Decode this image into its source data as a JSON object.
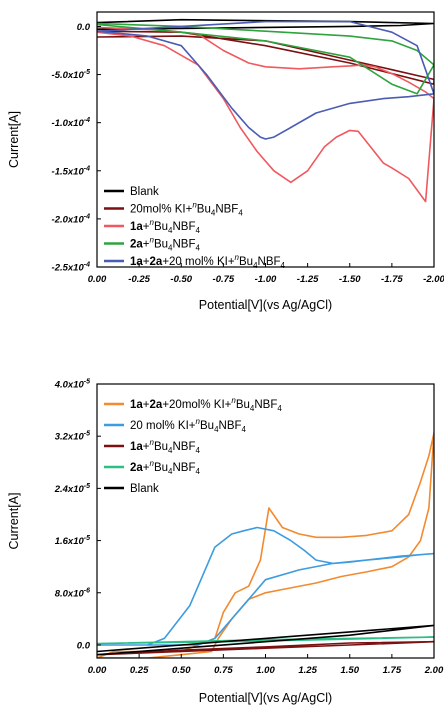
{
  "chart_data": [
    {
      "type": "line",
      "xlabel": "Potential[V](vs Ag/AgCl)",
      "ylabel": "Current[A]",
      "xlim": [
        0.0,
        -2.0
      ],
      "ylim": [
        -0.00025,
        1.5e-05
      ],
      "x_ticks": [
        0.0,
        -0.25,
        -0.5,
        -0.75,
        -1.0,
        -1.25,
        -1.5,
        -1.75,
        -2.0
      ],
      "x_tick_labels": [
        "0.00",
        "-0.25",
        "-0.50",
        "-0.75",
        "-1.00",
        "-1.25",
        "-1.50",
        "-1.75",
        "-2.00"
      ],
      "y_ticks": [
        0.0,
        -5e-05,
        -0.0001,
        -0.00015,
        -0.0002,
        -0.00025
      ],
      "y_tick_labels": [
        "0.0",
        "-5.0x10-5",
        "-1.0x10-4",
        "-1.5x10-4",
        "-2.0x10-4",
        "-2.5x10-4"
      ],
      "legend_position": "bottom-left",
      "legend": [
        {
          "id": "blank",
          "color": "#000000",
          "parts": [
            {
              "t": "Blank"
            }
          ]
        },
        {
          "id": "ki",
          "color": "#7a1010",
          "parts": [
            {
              "t": "20mol% KI+"
            },
            {
              "t": "n",
              "i": true,
              "sup": true
            },
            {
              "t": "Bu"
            },
            {
              "t": "4",
              "sub": true
            },
            {
              "t": "NBF"
            },
            {
              "t": "4",
              "sub": true
            }
          ]
        },
        {
          "id": "s1a",
          "color": "#f0595f",
          "parts": [
            {
              "t": "1a",
              "b": true
            },
            {
              "t": "+"
            },
            {
              "t": "n",
              "i": true,
              "sup": true
            },
            {
              "t": "Bu"
            },
            {
              "t": "4",
              "sub": true
            },
            {
              "t": "NBF"
            },
            {
              "t": "4",
              "sub": true
            }
          ]
        },
        {
          "id": "s2a",
          "color": "#2ea33e",
          "parts": [
            {
              "t": "2a",
              "b": true
            },
            {
              "t": "+"
            },
            {
              "t": "n",
              "i": true,
              "sup": true
            },
            {
              "t": "Bu"
            },
            {
              "t": "4",
              "sub": true
            },
            {
              "t": "NBF"
            },
            {
              "t": "4",
              "sub": true
            }
          ]
        },
        {
          "id": "mix",
          "color": "#4a5cb3",
          "parts": [
            {
              "t": "1a",
              "b": true
            },
            {
              "t": "+"
            },
            {
              "t": "2a",
              "b": true
            },
            {
              "t": "+20 mol% KI+"
            },
            {
              "t": "n",
              "i": true,
              "sup": true
            },
            {
              "t": "Bu"
            },
            {
              "t": "4",
              "sub": true
            },
            {
              "t": "NBF"
            },
            {
              "t": "4",
              "sub": true
            }
          ]
        }
      ],
      "series": [
        {
          "id": "blank",
          "color": "#000000",
          "x": [
            0.0,
            -0.5,
            -1.0,
            -1.5,
            -1.8,
            -2.0,
            -1.5,
            -1.0,
            -0.5,
            0.0
          ],
          "y": [
            -3e-06,
            -2e-06,
            -1e-06,
            0.0,
            1e-06,
            3e-06,
            5e-06,
            6e-06,
            7e-06,
            4e-06
          ]
        },
        {
          "id": "ki",
          "color": "#7a1010",
          "x": [
            0.0,
            -0.5,
            -1.0,
            -1.5,
            -1.75,
            -2.0,
            -2.0,
            -1.5,
            -1.0,
            -0.5,
            0.0
          ],
          "y": [
            -1.1e-05,
            -1e-05,
            -1.5e-05,
            -3.5e-05,
            -4.5e-05,
            -5.5e-05,
            -6e-05,
            -3.8e-05,
            -2e-05,
            -6e-06,
            -5e-06
          ]
        },
        {
          "id": "s1a",
          "color": "#f0595f",
          "x": [
            0.0,
            -0.4,
            -0.6,
            -0.75,
            -0.9,
            -1.0,
            -1.1,
            -1.2,
            -1.3,
            -1.4,
            -1.5,
            -1.58,
            -1.65,
            -1.75,
            -1.85,
            -1.95,
            -2.0,
            -1.95,
            -1.85,
            -1.75,
            -1.7,
            -1.6,
            -1.55,
            -1.5,
            -1.42,
            -1.35,
            -1.25,
            -1.15,
            -1.05,
            -0.95,
            -0.85,
            -0.75,
            -0.6,
            -0.4,
            -0.2,
            0.0
          ],
          "y": [
            -1e-06,
            -4e-06,
            -8e-06,
            -2.5e-05,
            -3.8e-05,
            -4.2e-05,
            -4.3e-05,
            -4.4e-05,
            -4.3e-05,
            -4.2e-05,
            -4.1e-05,
            -4e-05,
            -4.2e-05,
            -4.9e-05,
            -5.8e-05,
            -6.8e-05,
            -7.5e-05,
            -0.000182,
            -0.000158,
            -0.000147,
            -0.000142,
            -0.00012,
            -0.000109,
            -0.000108,
            -0.000115,
            -0.000125,
            -0.00015,
            -0.000162,
            -0.00015,
            -0.00013,
            -0.000105,
            -7.5e-05,
            -4e-05,
            -2e-05,
            -1e-05,
            -6e-06
          ]
        },
        {
          "id": "s2a",
          "color": "#2ea33e",
          "x": [
            0.0,
            -0.5,
            -1.0,
            -1.5,
            -1.75,
            -1.9,
            -2.0,
            -1.9,
            -1.75,
            -1.5,
            -1.0,
            -0.5,
            0.0
          ],
          "y": [
            3e-06,
            0.0,
            -5e-06,
            -1e-05,
            -1.5e-05,
            -2.5e-05,
            -4e-05,
            -7e-05,
            -6e-05,
            -3.2e-05,
            -1.5e-05,
            -6e-06,
            2e-06
          ]
        },
        {
          "id": "mix",
          "color": "#4a5cb3",
          "x": [
            0.0,
            -0.3,
            -0.5,
            -0.65,
            -0.8,
            -0.9,
            -0.97,
            -1.0,
            -1.05,
            -1.15,
            -1.3,
            -1.5,
            -1.7,
            -1.85,
            -2.0,
            -1.9,
            -1.75,
            -1.5,
            -1.0,
            -0.5,
            0.0
          ],
          "y": [
            -5e-06,
            -1e-05,
            -2e-05,
            -5e-05,
            -8.5e-05,
            -0.000105,
            -0.000115,
            -0.000117,
            -0.000115,
            -0.000105,
            -9e-05,
            -8e-05,
            -7.5e-05,
            -7.3e-05,
            -7e-05,
            -2e-05,
            -6e-06,
            5e-06,
            5e-06,
            0.0,
            -5e-06
          ]
        }
      ]
    },
    {
      "type": "line",
      "xlabel": "Potential[V](vs Ag/AgCl)",
      "ylabel": "Current[A]",
      "xlim": [
        0.0,
        2.0
      ],
      "ylim": [
        -2e-06,
        4e-05
      ],
      "x_ticks": [
        0.0,
        0.25,
        0.5,
        0.75,
        1.0,
        1.25,
        1.5,
        1.75,
        2.0
      ],
      "x_tick_labels": [
        "0.00",
        "0.25",
        "0.50",
        "0.75",
        "1.00",
        "1.25",
        "1.50",
        "1.75",
        "2.00"
      ],
      "y_ticks": [
        0.0,
        8e-06,
        1.6e-05,
        2.4e-05,
        3.2e-05,
        4e-05
      ],
      "y_tick_labels": [
        "0.0",
        "8.0x10-6",
        "1.6x10-5",
        "2.4x10-5",
        "3.2x10-5",
        "4.0x10-5"
      ],
      "legend_position": "top-left",
      "legend": [
        {
          "id": "mix",
          "color": "#f28a30",
          "parts": [
            {
              "t": "1a",
              "b": true
            },
            {
              "t": "+"
            },
            {
              "t": "2a",
              "b": true
            },
            {
              "t": "+20mol% KI+"
            },
            {
              "t": "n",
              "i": true,
              "sup": true
            },
            {
              "t": "Bu"
            },
            {
              "t": "4",
              "sub": true
            },
            {
              "t": "NBF"
            },
            {
              "t": "4",
              "sub": true
            }
          ]
        },
        {
          "id": "ki",
          "color": "#3d9be0",
          "parts": [
            {
              "t": "20 mol% KI+"
            },
            {
              "t": "n",
              "i": true,
              "sup": true
            },
            {
              "t": "Bu"
            },
            {
              "t": "4",
              "sub": true
            },
            {
              "t": "NBF"
            },
            {
              "t": "4",
              "sub": true
            }
          ]
        },
        {
          "id": "s1a",
          "color": "#7a1010",
          "parts": [
            {
              "t": "1a",
              "b": true
            },
            {
              "t": "+"
            },
            {
              "t": "n",
              "i": true,
              "sup": true
            },
            {
              "t": "Bu"
            },
            {
              "t": "4",
              "sub": true
            },
            {
              "t": "NBF"
            },
            {
              "t": "4",
              "sub": true
            }
          ]
        },
        {
          "id": "s2a",
          "color": "#2bbf86",
          "parts": [
            {
              "t": "2a",
              "b": true
            },
            {
              "t": "+"
            },
            {
              "t": "n",
              "i": true,
              "sup": true
            },
            {
              "t": "Bu"
            },
            {
              "t": "4",
              "sub": true
            },
            {
              "t": "NBF"
            },
            {
              "t": "4",
              "sub": true
            }
          ]
        },
        {
          "id": "blank",
          "color": "#000000",
          "parts": [
            {
              "t": "Blank"
            }
          ]
        }
      ],
      "series": [
        {
          "id": "mix",
          "color": "#f28a30",
          "x": [
            0.0,
            0.1,
            0.2,
            0.3,
            0.4,
            0.5,
            0.6,
            0.7,
            0.75,
            0.82,
            0.9,
            0.97,
            1.02,
            1.1,
            1.2,
            1.3,
            1.45,
            1.6,
            1.75,
            1.85,
            1.92,
            1.97,
            2.0,
            1.97,
            1.92,
            1.85,
            1.75,
            1.6,
            1.45,
            1.3,
            1.1,
            1.0,
            0.9,
            0.8,
            0.72,
            0.68,
            0.5,
            0.3,
            0.15,
            0.0
          ],
          "y": [
            -2e-06,
            -1e-06,
            -1e-06,
            -1e-06,
            -1e-06,
            -1e-06,
            0.0,
            1e-06,
            5e-06,
            8e-06,
            9e-06,
            1.3e-05,
            2.1e-05,
            1.8e-05,
            1.7e-05,
            1.65e-05,
            1.65e-05,
            1.68e-05,
            1.75e-05,
            2e-05,
            2.5e-05,
            2.9e-05,
            3.25e-05,
            2.1e-05,
            1.6e-05,
            1.35e-05,
            1.2e-05,
            1.12e-05,
            1.05e-05,
            9.5e-06,
            8.5e-06,
            8e-06,
            7e-06,
            4e-06,
            1e-06,
            -1e-06,
            -1.5e-06,
            -2e-06,
            -2e-06,
            -2e-06
          ]
        },
        {
          "id": "ki",
          "color": "#3d9be0",
          "x": [
            0.0,
            0.2,
            0.3,
            0.4,
            0.55,
            0.7,
            0.8,
            0.87,
            0.95,
            1.05,
            1.15,
            1.23,
            1.3,
            1.4,
            1.5,
            1.6,
            1.7,
            1.8,
            1.9,
            2.0,
            1.9,
            1.8,
            1.6,
            1.4,
            1.2,
            1.0,
            0.9,
            0.8,
            0.7,
            0.6,
            0.4,
            0.2,
            0.0
          ],
          "y": [
            0.0,
            0.0,
            0.0,
            1e-06,
            6e-06,
            1.5e-05,
            1.7e-05,
            1.75e-05,
            1.8e-05,
            1.75e-05,
            1.6e-05,
            1.45e-05,
            1.3e-05,
            1.25e-05,
            1.27e-05,
            1.3e-05,
            1.33e-05,
            1.36e-05,
            1.38e-05,
            1.4e-05,
            1.38e-05,
            1.35e-05,
            1.3e-05,
            1.25e-05,
            1.15e-05,
            1e-05,
            7e-06,
            4e-06,
            1e-06,
            0.0,
            0.0,
            0.0,
            0.0
          ]
        },
        {
          "id": "s1a",
          "color": "#7a1010",
          "x": [
            0.0,
            0.5,
            1.0,
            1.5,
            2.0,
            1.5,
            1.0,
            0.5,
            0.0
          ],
          "y": [
            -1.5e-06,
            -1e-06,
            -5e-07,
            0.0,
            5e-07,
            3e-07,
            -3e-07,
            -8e-07,
            -1.5e-06
          ]
        },
        {
          "id": "s2a",
          "color": "#2bbf86",
          "x": [
            0.0,
            0.5,
            1.0,
            1.5,
            2.0,
            1.5,
            1.0,
            0.5,
            0.0
          ],
          "y": [
            2e-07,
            4e-07,
            6e-07,
            9e-07,
            1.2e-06,
            1e-06,
            8e-07,
            5e-07,
            2e-07
          ]
        },
        {
          "id": "blank",
          "color": "#000000",
          "x": [
            0.0,
            0.5,
            1.0,
            1.5,
            2.0,
            1.5,
            1.0,
            0.5,
            0.0
          ],
          "y": [
            -1.5e-06,
            -5e-07,
            5e-07,
            1.5e-06,
            3e-06,
            2e-06,
            1e-06,
            0.0,
            -1e-06
          ]
        }
      ]
    }
  ]
}
